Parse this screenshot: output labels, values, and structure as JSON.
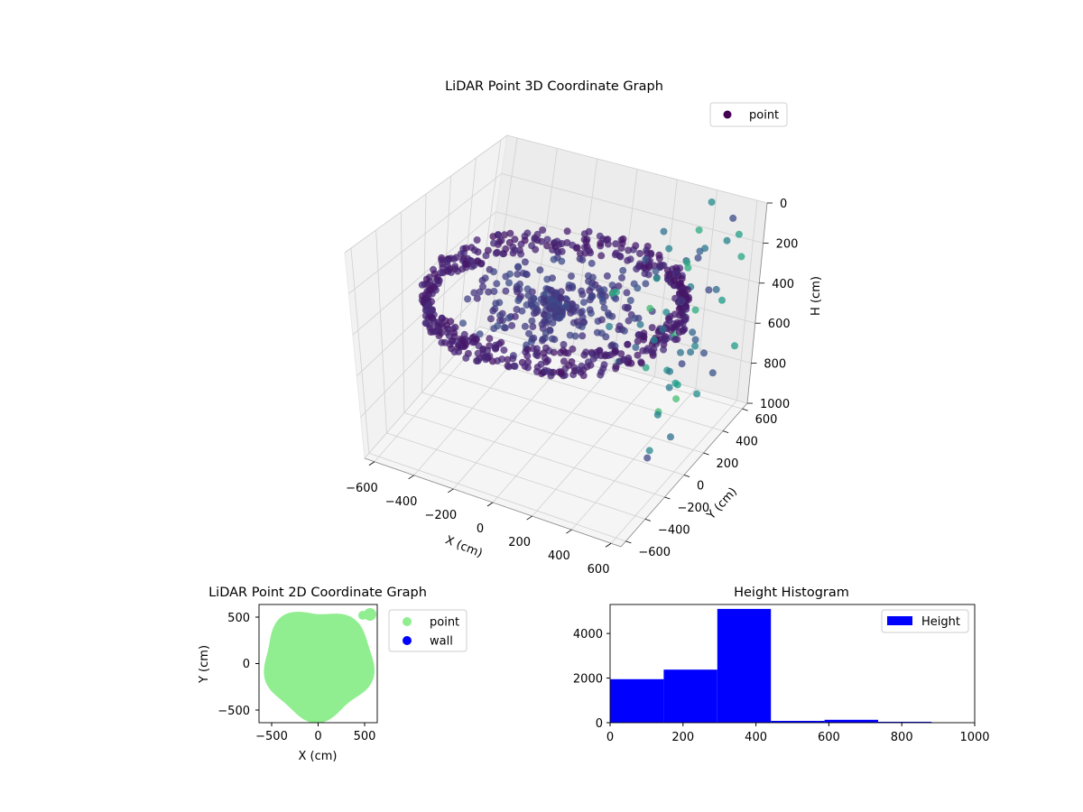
{
  "chart_data": [
    {
      "type": "scatter",
      "subtype": "3d",
      "title": "LiDAR Point 3D Coordinate Graph",
      "xlabel": "X (cm)",
      "ylabel": "Y (cm)",
      "zlabel": "H (cm)",
      "xlim": [
        -650,
        650
      ],
      "ylim": [
        -650,
        650
      ],
      "zlim": [
        1000,
        0
      ],
      "xticks": [
        "−600",
        "−400",
        "−200",
        "0",
        "200",
        "400",
        "600"
      ],
      "yticks": [
        "−600",
        "−400",
        "−200",
        "0",
        "200",
        "400",
        "600"
      ],
      "zticks": [
        "0",
        "200",
        "400",
        "600",
        "800",
        "1000"
      ],
      "legend": {
        "position": "top-right",
        "entries": [
          {
            "label": "point",
            "color": "#440154"
          }
        ]
      },
      "colormap": "viridis",
      "grid": true,
      "description_values": {
        "ring_radius_cm": 560,
        "ring_height_cm": [
          300,
          430
        ],
        "ceiling_points_height_cm": [
          0,
          100
        ],
        "scattered_points_height_cm": [
          0,
          850
        ]
      }
    },
    {
      "type": "scatter",
      "title": "LiDAR Point 2D Coordinate Graph",
      "xlabel": "X (cm)",
      "ylabel": "Y (cm)",
      "xlim": [
        -650,
        650
      ],
      "ylim": [
        -650,
        650
      ],
      "xticks": [
        "−500",
        "0",
        "500"
      ],
      "yticks": [
        "500",
        "0",
        "−500"
      ],
      "legend": {
        "position": "right-outside",
        "entries": [
          {
            "label": "point",
            "color": "#90ee90"
          },
          {
            "label": "wall",
            "color": "#0000ff"
          }
        ]
      },
      "shape": "disc",
      "disc_radius_cm": 600
    },
    {
      "type": "bar",
      "subtype": "histogram",
      "title": "Height Histogram",
      "xlabel": "",
      "ylabel": "",
      "xlim": [
        0,
        1000
      ],
      "ylim": [
        0,
        5300
      ],
      "xticks": [
        "0",
        "200",
        "400",
        "600",
        "800",
        "1000"
      ],
      "yticks": [
        "0",
        "2000",
        "4000"
      ],
      "bins": [
        {
          "x0": 0,
          "x1": 147,
          "value": 1950
        },
        {
          "x0": 147,
          "x1": 294,
          "value": 2380
        },
        {
          "x0": 294,
          "x1": 441,
          "value": 5100
        },
        {
          "x0": 441,
          "x1": 588,
          "value": 80
        },
        {
          "x0": 588,
          "x1": 735,
          "value": 130
        },
        {
          "x0": 735,
          "x1": 882,
          "value": 40
        }
      ],
      "color": "#0000ff",
      "legend": {
        "position": "top-right",
        "entries": [
          {
            "label": "Height",
            "color": "#0000ff"
          }
        ]
      }
    }
  ]
}
